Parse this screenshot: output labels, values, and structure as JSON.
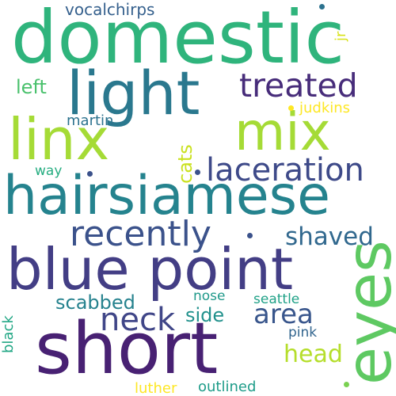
{
  "cloud": {
    "words": [
      {
        "text": "domestic",
        "color": "#2fb47c"
      },
      {
        "text": "light",
        "color": "#2a788e"
      },
      {
        "text": "treated",
        "color": "#472c7a"
      },
      {
        "text": "linx",
        "color": "#a5db36"
      },
      {
        "text": "mix",
        "color": "#a5db36"
      },
      {
        "text": "hairsiamese",
        "color": "#25838e"
      },
      {
        "text": "laceration",
        "color": "#3e4a89"
      },
      {
        "text": "recently",
        "color": "#3b528b"
      },
      {
        "text": "shaved",
        "color": "#31688e"
      },
      {
        "text": "blue point",
        "color": "#433e85"
      },
      {
        "text": "eyes",
        "color": "#5ec962"
      },
      {
        "text": "short",
        "color": "#482173"
      },
      {
        "text": "neck",
        "color": "#404688"
      },
      {
        "text": "area",
        "color": "#39568c"
      },
      {
        "text": "scabbed",
        "color": "#26828e"
      },
      {
        "text": "side",
        "color": "#21918c"
      },
      {
        "text": "head",
        "color": "#b5de2b"
      },
      {
        "text": "vocalchirps",
        "color": "#35608d"
      },
      {
        "text": "left",
        "color": "#4ac16d"
      },
      {
        "text": "martin",
        "color": "#2c728e"
      },
      {
        "text": "way",
        "color": "#26ad81"
      },
      {
        "text": "cats",
        "color": "#cae11f"
      },
      {
        "text": "judkins",
        "color": "#fde725"
      },
      {
        "text": "jr",
        "color": "#d8e219"
      },
      {
        "text": "nose",
        "color": "#1f998a"
      },
      {
        "text": "seattle",
        "color": "#1fa187"
      },
      {
        "text": "pink",
        "color": "#32658e"
      },
      {
        "text": "black",
        "color": "#22a785"
      },
      {
        "text": "luther",
        "color": "#fde725"
      },
      {
        "text": "outlined",
        "color": "#1e9c89"
      }
    ]
  }
}
